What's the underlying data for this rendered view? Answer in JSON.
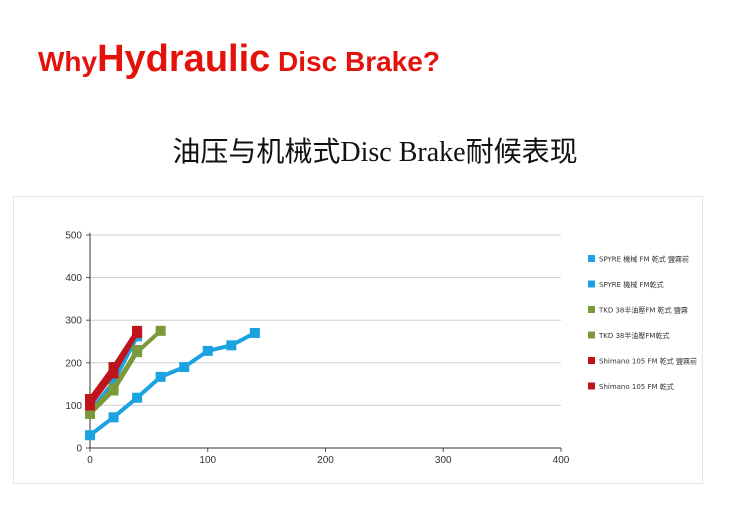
{
  "slide": {
    "title_part1": "Why",
    "title_part2": "Hydraulic",
    "title_part3": " Disc Brake?",
    "subtitle": "油压与机械式Disc Brake耐候表现"
  },
  "chart_data": {
    "type": "line",
    "xlim": [
      0,
      400
    ],
    "ylim": [
      0,
      500
    ],
    "x_ticks": [
      0,
      100,
      200,
      300,
      400
    ],
    "y_ticks": [
      0,
      100,
      200,
      300,
      400,
      500
    ],
    "grid": true,
    "legend_position": "right",
    "series": [
      {
        "name": "SPYRE 機械 FM 乾式 鹽霧前",
        "color": "#1aa3e0",
        "x": [
          0,
          20,
          40,
          60,
          80,
          100,
          120,
          140
        ],
        "y": [
          30,
          72,
          118,
          167,
          190,
          228,
          241,
          270
        ]
      },
      {
        "name": "SPYRE 機械 FM乾式",
        "color": "#1aa3e0",
        "x": [
          0,
          20,
          40
        ],
        "y": [
          85,
          155,
          262
        ]
      },
      {
        "name": "TKD 38半油壓FM 乾式 鹽霧",
        "color": "#7a9a3c",
        "x": [
          0,
          20,
          40,
          60
        ],
        "y": [
          80,
          135,
          225,
          275
        ]
      },
      {
        "name": "TKD 38半油壓FM乾式",
        "color": "#7a9a3c",
        "x": [
          0,
          20,
          40
        ],
        "y": [
          85,
          140,
          230
        ]
      },
      {
        "name": "Shimano 105 FM 乾式 鹽霧前",
        "color": "#c0141c",
        "x": [
          0,
          20,
          40
        ],
        "y": [
          115,
          190,
          275
        ]
      },
      {
        "name": "Shimano 105 FM 乾式",
        "color": "#c0141c",
        "x": [
          0,
          20,
          40
        ],
        "y": [
          100,
          175,
          270
        ]
      }
    ]
  }
}
